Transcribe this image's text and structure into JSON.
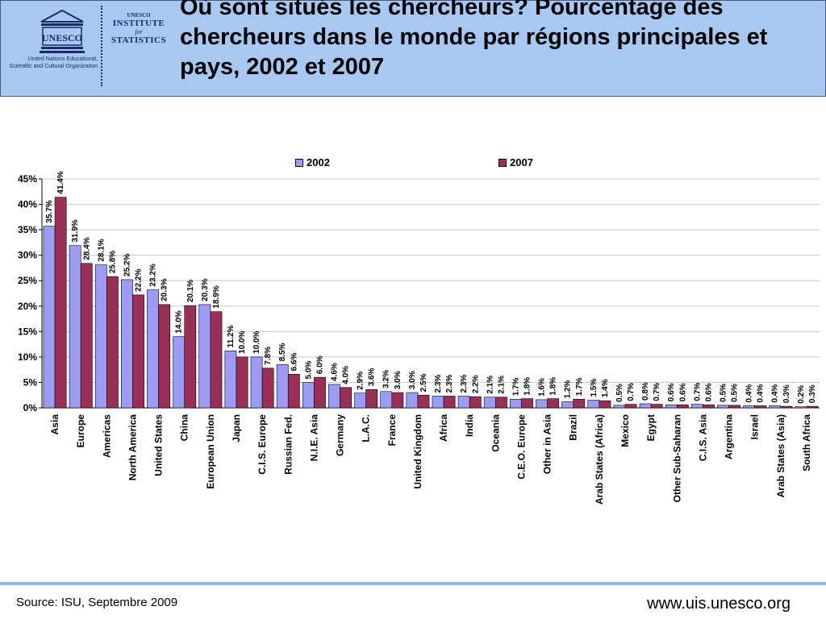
{
  "header": {
    "title": "Où sont situés les chercheurs? Pourcentage des chercheurs dans le monde par régions principales et pays, 2002 et 2007",
    "logo_text": "UNESCO",
    "logo_caption": "United Nations Educational, Scientific and Cultural Organization",
    "isu_line1": "UNESCO",
    "isu_line2": "INSTITUTE",
    "isu_line3": "for",
    "isu_line4": "STATISTICS"
  },
  "footer": {
    "source": "Source: ISU, Septembre 2009",
    "website": "www.uis.unesco.org"
  },
  "colors": {
    "header_bg": "#a8c8f2",
    "series_2002": "#9c9cf5",
    "series_2007": "#9a2f5a",
    "footer_line": "#8fb8ee"
  },
  "chart_data": {
    "type": "bar",
    "title": "",
    "xlabel": "",
    "ylabel": "",
    "ylim": [
      0,
      45
    ],
    "yticks": [
      "0%",
      "5%",
      "10%",
      "15%",
      "20%",
      "25%",
      "30%",
      "35%",
      "40%",
      "45%"
    ],
    "grid": true,
    "legend_position": "top",
    "categories": [
      "Asia",
      "Europe",
      "Americas",
      "North America",
      "United States",
      "China",
      "European Union",
      "Japan",
      "C.I.S. Europe",
      "Russian Fed.",
      "N.I.E. Asia",
      "Germany",
      "L.A.C.",
      "France",
      "United Kingdom",
      "Africa",
      "India",
      "Oceania",
      "C.E.O. Europe",
      "Other in Asia",
      "Brazil",
      "Arab States (Africa)",
      "Mexico",
      "Egypt",
      "Other Sub-Saharan",
      "C.I.S. Asia",
      "Argentina",
      "Israel",
      "Arab States (Asia)",
      "South Africa"
    ],
    "series": [
      {
        "name": "2002",
        "values": [
          35.7,
          31.9,
          28.1,
          25.2,
          23.2,
          14.0,
          20.3,
          11.2,
          10.0,
          8.5,
          5.0,
          4.6,
          2.9,
          3.2,
          3.0,
          2.3,
          2.3,
          2.1,
          1.7,
          1.6,
          1.2,
          1.5,
          0.5,
          0.8,
          0.6,
          0.7,
          0.5,
          0.4,
          0.4,
          0.2
        ],
        "labels": [
          "35.7%",
          "31.9%",
          "28.1%",
          "25.2%",
          "23.2%",
          "14.0%",
          "20.3%",
          "11.2%",
          "10.0%",
          "8.5%",
          "5.0%",
          "4.6%",
          "2.9%",
          "3.2%",
          "3.0%",
          "2.3%",
          "2.3%",
          "2.1%",
          "1.7%",
          "1.6%",
          "1.2%",
          "1.5%",
          "0.5%",
          "0.8%",
          "0.6%",
          "0.7%",
          "0.5%",
          "0.4%",
          "0.4%",
          "0.2%"
        ]
      },
      {
        "name": "2007",
        "values": [
          41.4,
          28.4,
          25.8,
          22.2,
          20.3,
          20.1,
          18.9,
          10.0,
          7.8,
          6.6,
          6.0,
          4.0,
          3.6,
          3.0,
          2.5,
          2.3,
          2.2,
          2.1,
          1.8,
          1.8,
          1.7,
          1.4,
          0.7,
          0.7,
          0.6,
          0.6,
          0.5,
          0.4,
          0.3,
          0.3
        ],
        "labels": [
          "41.4%",
          "28.4%",
          "25.8%",
          "22.2%",
          "20.3%",
          "20.1%",
          "18.9%",
          "10.0%",
          "7.8%",
          "6.6%",
          "6.0%",
          "4.0%",
          "3.6%",
          "3.0%",
          "2.5%",
          "2.3%",
          "2.2%",
          "2.1%",
          "1.8%",
          "1.8%",
          "1.7%",
          "1.4%",
          "0.7%",
          "0.7%",
          "0.6%",
          "0.6%",
          "0.5%",
          "0.4%",
          "0.3%",
          "0.3%"
        ]
      }
    ]
  }
}
